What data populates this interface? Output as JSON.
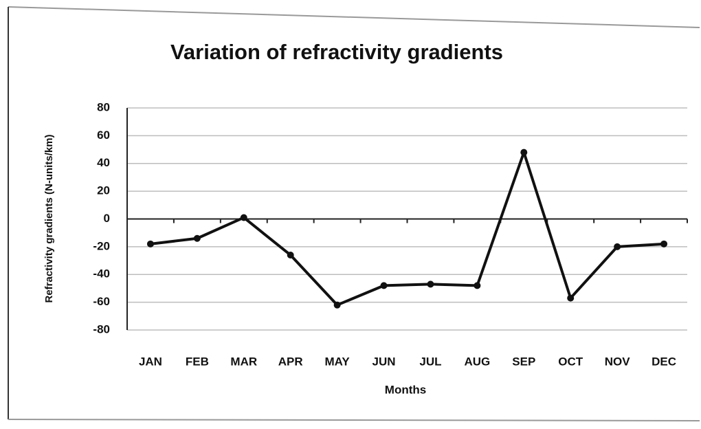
{
  "chart_data": {
    "type": "line",
    "title": "Variation of refractivity gradients",
    "x_label": "Months",
    "y_label": "Refractivity gradients (N-units/km)",
    "categories": [
      "JAN",
      "FEB",
      "MAR",
      "APR",
      "MAY",
      "JUN",
      "JUL",
      "AUG",
      "SEP",
      "OCT",
      "NOV",
      "DEC"
    ],
    "values": [
      -18,
      -14,
      1,
      -26,
      -62,
      -48,
      -47,
      -48,
      48,
      -57,
      -20,
      -18
    ],
    "color": "#111111",
    "ylim": [
      -80,
      80
    ],
    "yticks": [
      -80,
      -60,
      -40,
      -20,
      0,
      20,
      40,
      60,
      80
    ],
    "grid": true
  }
}
